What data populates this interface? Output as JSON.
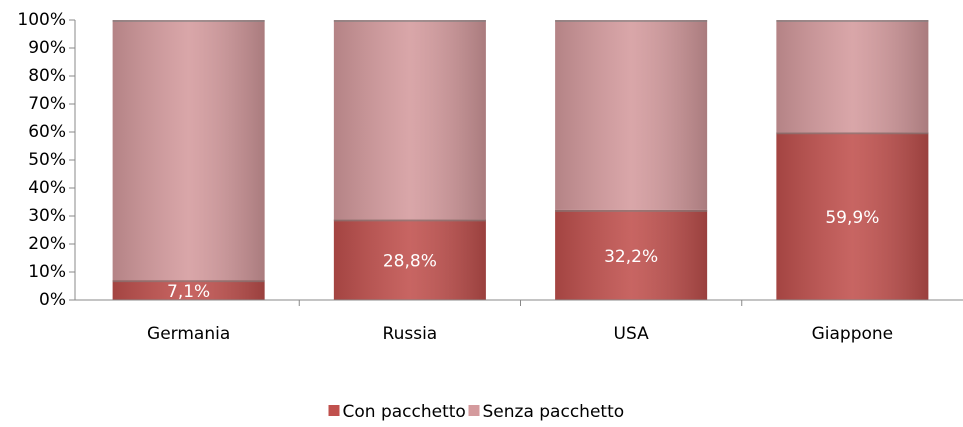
{
  "chart_data": {
    "type": "stacked_bar",
    "categories": [
      "Germania",
      "Russia",
      "USA",
      "Giappone"
    ],
    "series": [
      {
        "name": "Con pacchetto",
        "color": "#c0504d",
        "values": [
          7.1,
          28.8,
          32.2,
          59.9
        ],
        "value_labels": [
          "7,1%",
          "28,8%",
          "32,2%",
          "59,9%"
        ]
      },
      {
        "name": "Senza pacchetto",
        "color": "#d49a9d",
        "values": [
          92.9,
          71.2,
          67.8,
          40.1
        ]
      }
    ],
    "ylim": [
      0,
      100
    ],
    "yticks": [
      {
        "value": 0,
        "label": "0%"
      },
      {
        "value": 10,
        "label": "10%"
      },
      {
        "value": 20,
        "label": "20%"
      },
      {
        "value": 30,
        "label": "30%"
      },
      {
        "value": 40,
        "label": "40%"
      },
      {
        "value": 50,
        "label": "50%"
      },
      {
        "value": 60,
        "label": "60%"
      },
      {
        "value": 70,
        "label": "70%"
      },
      {
        "value": 80,
        "label": "80%"
      },
      {
        "value": 90,
        "label": "90%"
      },
      {
        "value": 100,
        "label": "100%"
      }
    ],
    "grid": false,
    "legend": "bottom"
  }
}
